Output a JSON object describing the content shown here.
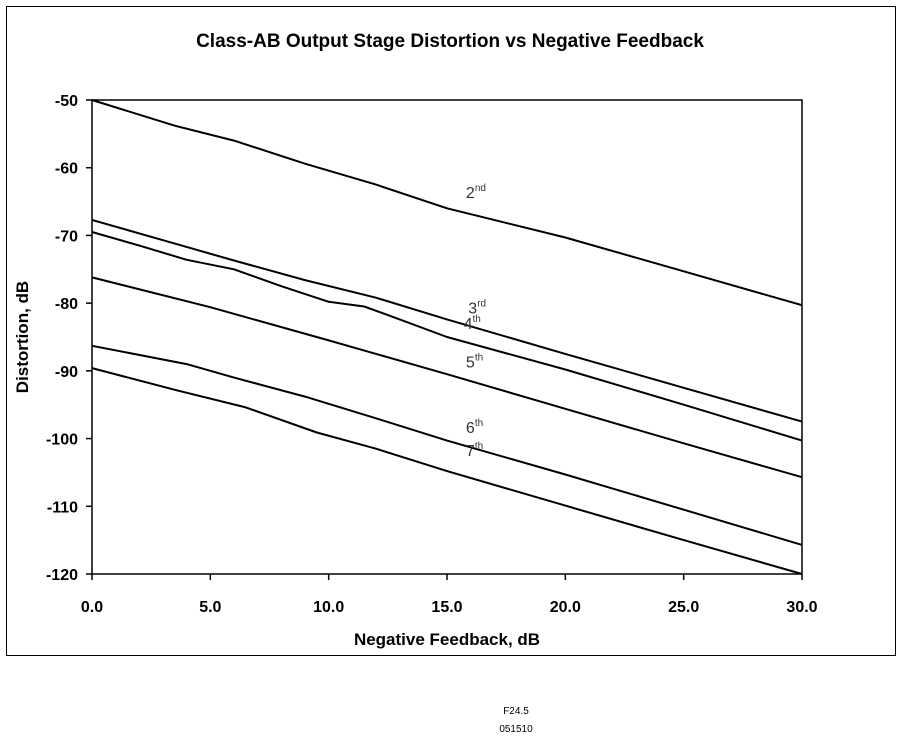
{
  "chart_data": {
    "type": "line",
    "title": "Class-AB Output Stage Distortion vs Negative Feedback",
    "xlabel": "Negative Feedback, dB",
    "ylabel": "Distortion, dB",
    "xlim": [
      0,
      30
    ],
    "ylim": [
      -120,
      -50
    ],
    "xticks": [
      "0.0",
      "5.0",
      "10.0",
      "15.0",
      "20.0",
      "25.0",
      "30.0"
    ],
    "yticks": [
      "-50",
      "-60",
      "-70",
      "-80",
      "-90",
      "-100",
      "-110",
      "-120"
    ],
    "grid": false,
    "legend": "none",
    "line_color": "#000000",
    "series": [
      {
        "name": "2nd",
        "base": "2",
        "sup": "nd",
        "points": [
          [
            0,
            -50
          ],
          [
            3.5,
            -53.8
          ],
          [
            6,
            -56
          ],
          [
            9,
            -59.4
          ],
          [
            12,
            -62.5
          ],
          [
            15,
            -66
          ],
          [
            20,
            -70.3
          ],
          [
            25,
            -75.3
          ],
          [
            30,
            -80.3
          ]
        ]
      },
      {
        "name": "3rd",
        "base": "3",
        "sup": "rd",
        "points": [
          [
            0,
            -67.7
          ],
          [
            3,
            -70.7
          ],
          [
            6,
            -73.7
          ],
          [
            9,
            -76.6
          ],
          [
            12,
            -79.2
          ],
          [
            15,
            -82.4
          ],
          [
            20,
            -87.5
          ],
          [
            25,
            -92.5
          ],
          [
            30,
            -97.5
          ]
        ]
      },
      {
        "name": "4th",
        "base": "4",
        "sup": "th",
        "points": [
          [
            0,
            -69.5
          ],
          [
            2,
            -71.5
          ],
          [
            4,
            -73.6
          ],
          [
            6,
            -75
          ],
          [
            8,
            -77.5
          ],
          [
            10,
            -79.8
          ],
          [
            11.5,
            -80.5
          ],
          [
            13,
            -82.4
          ],
          [
            15,
            -85
          ],
          [
            20,
            -89.8
          ],
          [
            25,
            -95
          ],
          [
            30,
            -100.3
          ]
        ]
      },
      {
        "name": "5th",
        "base": "5",
        "sup": "th",
        "points": [
          [
            0,
            -76.2
          ],
          [
            5,
            -80.6
          ],
          [
            10,
            -85.5
          ],
          [
            15,
            -90.5
          ],
          [
            20,
            -95.6
          ],
          [
            25,
            -100.7
          ],
          [
            30,
            -105.7
          ]
        ]
      },
      {
        "name": "6th",
        "base": "6",
        "sup": "th",
        "points": [
          [
            0,
            -86.3
          ],
          [
            4,
            -89
          ],
          [
            6,
            -91
          ],
          [
            9,
            -93.8
          ],
          [
            12,
            -97
          ],
          [
            15,
            -100.3
          ],
          [
            20,
            -105.3
          ],
          [
            25,
            -110.5
          ],
          [
            30,
            -115.7
          ]
        ]
      },
      {
        "name": "7th",
        "base": "7",
        "sup": "th",
        "points": [
          [
            0,
            -89.6
          ],
          [
            3.5,
            -92.8
          ],
          [
            6.5,
            -95.4
          ],
          [
            9.5,
            -99.1
          ],
          [
            12,
            -101.5
          ],
          [
            15,
            -104.8
          ],
          [
            20,
            -109.9
          ],
          [
            25,
            -115
          ],
          [
            30,
            -120
          ]
        ]
      }
    ],
    "labels": [
      {
        "series": "2nd",
        "x": 15.8,
        "y": -64.5
      },
      {
        "series": "3rd",
        "x": 15.9,
        "y": -81.5
      },
      {
        "series": "4th",
        "x": 15.7,
        "y": -83.8
      },
      {
        "series": "5th",
        "x": 15.8,
        "y": -89.5
      },
      {
        "series": "6th",
        "x": 15.8,
        "y": -99.2
      },
      {
        "series": "7th",
        "x": 15.8,
        "y": -102.6
      }
    ]
  },
  "figure_id": "F24.5",
  "figure_code": "051510"
}
